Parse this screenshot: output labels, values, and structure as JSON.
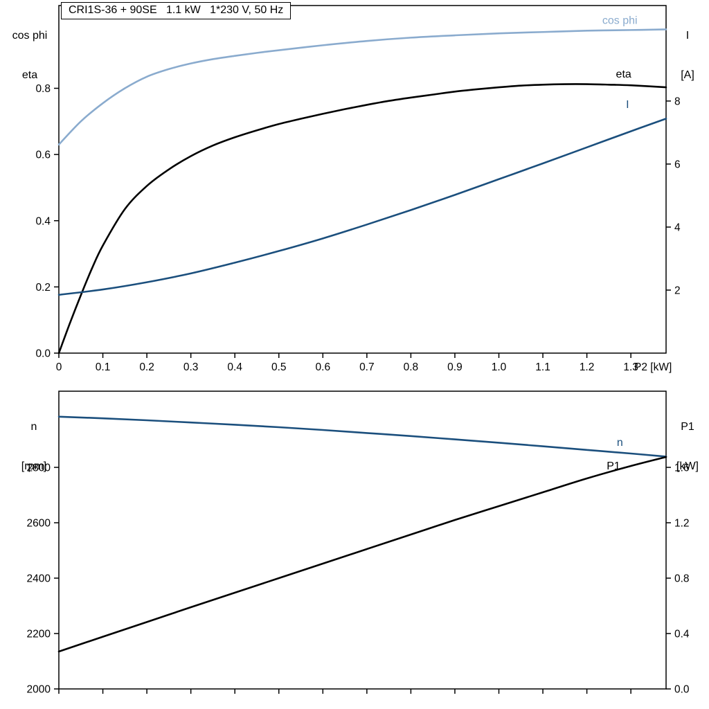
{
  "header": {
    "title": "CRI1S-36 + 90SE   1.1 kW   1*230 V, 50 Hz"
  },
  "axes_corner_labels": {
    "top_left": [
      "cos phi",
      "eta"
    ],
    "top_right": [
      "I",
      "[A]"
    ],
    "bottom_left": [
      "n",
      "[rpm]"
    ],
    "bottom_right": [
      "P1",
      "[kW]"
    ]
  },
  "colors": {
    "light_blue": "#8aabce",
    "dark_blue": "#1b4f7d",
    "black": "#000000"
  },
  "chart_data": [
    {
      "type": "line",
      "title": "CRI1S-36 + 90SE   1.1 kW   1*230 V, 50 Hz",
      "grid": false,
      "x_axis": {
        "min": 0,
        "max": 1.38,
        "label": "P2 [kW]",
        "ticks": [
          {
            "v": 0,
            "t": "0"
          },
          {
            "v": 0.1,
            "t": "0.1"
          },
          {
            "v": 0.2,
            "t": "0.2"
          },
          {
            "v": 0.3,
            "t": "0.3"
          },
          {
            "v": 0.4,
            "t": "0.4"
          },
          {
            "v": 0.5,
            "t": "0.5"
          },
          {
            "v": 0.6,
            "t": "0.6"
          },
          {
            "v": 0.7,
            "t": "0.7"
          },
          {
            "v": 0.8,
            "t": "0.8"
          },
          {
            "v": 0.9,
            "t": "0.9"
          },
          {
            "v": 1.0,
            "t": "1.0"
          },
          {
            "v": 1.1,
            "t": "1.1"
          },
          {
            "v": 1.2,
            "t": "1.2"
          },
          {
            "v": 1.3,
            "t": "1.3"
          }
        ]
      },
      "left_axis": {
        "name": "cos phi / eta",
        "min": 0,
        "max": 1.05,
        "ticks": [
          {
            "v": 0,
            "t": "0.0"
          },
          {
            "v": 0.2,
            "t": "0.2"
          },
          {
            "v": 0.4,
            "t": "0.4"
          },
          {
            "v": 0.6,
            "t": "0.6"
          },
          {
            "v": 0.8,
            "t": "0.8"
          }
        ]
      },
      "right_axis": {
        "name": "I [A]",
        "min": 0,
        "max": 11.03,
        "ticks": [
          {
            "v": 2,
            "t": "2"
          },
          {
            "v": 4,
            "t": "4"
          },
          {
            "v": 6,
            "t": "6"
          },
          {
            "v": 8,
            "t": "8"
          }
        ]
      },
      "series": [
        {
          "name": "cos phi",
          "axis": "left",
          "color": "#8aabce",
          "width": 2.6,
          "x": [
            0,
            0.05,
            0.1,
            0.15,
            0.2,
            0.25,
            0.3,
            0.35,
            0.4,
            0.45,
            0.5,
            0.6,
            0.7,
            0.8,
            0.9,
            1.0,
            1.1,
            1.2,
            1.3,
            1.38
          ],
          "y": [
            0.63,
            0.7,
            0.755,
            0.8,
            0.835,
            0.858,
            0.875,
            0.888,
            0.898,
            0.907,
            0.915,
            0.93,
            0.943,
            0.953,
            0.96,
            0.966,
            0.97,
            0.974,
            0.976,
            0.978
          ],
          "label": {
            "text": "cos phi",
            "x": 1.235,
            "y": 0.995
          }
        },
        {
          "name": "eta",
          "axis": "left",
          "color": "#000000",
          "width": 2.6,
          "x": [
            0,
            0.025,
            0.05,
            0.075,
            0.1,
            0.15,
            0.2,
            0.25,
            0.3,
            0.35,
            0.4,
            0.45,
            0.5,
            0.55,
            0.6,
            0.65,
            0.7,
            0.75,
            0.8,
            0.85,
            0.9,
            0.95,
            1.0,
            1.05,
            1.1,
            1.15,
            1.2,
            1.25,
            1.3,
            1.38
          ],
          "y": [
            0,
            0.09,
            0.175,
            0.255,
            0.325,
            0.435,
            0.505,
            0.555,
            0.595,
            0.627,
            0.652,
            0.673,
            0.692,
            0.708,
            0.723,
            0.737,
            0.75,
            0.762,
            0.772,
            0.781,
            0.79,
            0.797,
            0.803,
            0.808,
            0.811,
            0.8125,
            0.8125,
            0.811,
            0.809,
            0.803
          ],
          "label": {
            "text": "eta",
            "x": 1.266,
            "y": 0.832
          }
        },
        {
          "name": "I",
          "axis": "right",
          "color": "#1b4f7d",
          "width": 2.6,
          "x": [
            0,
            0.1,
            0.2,
            0.3,
            0.4,
            0.5,
            0.6,
            0.7,
            0.8,
            0.9,
            1.0,
            1.1,
            1.2,
            1.3,
            1.38
          ],
          "y": [
            1.85,
            2.02,
            2.25,
            2.53,
            2.87,
            3.24,
            3.64,
            4.08,
            4.54,
            5.02,
            5.52,
            6.02,
            6.53,
            7.04,
            7.44
          ],
          "label": {
            "text": "I",
            "x": 1.289,
            "y": 7.78
          }
        }
      ]
    },
    {
      "type": "line",
      "title": "",
      "grid": false,
      "x_axis": {
        "min": 0,
        "max": 1.38,
        "label": "",
        "ticks": [
          {
            "v": 0,
            "t": ""
          },
          {
            "v": 0.1,
            "t": ""
          },
          {
            "v": 0.2,
            "t": ""
          },
          {
            "v": 0.3,
            "t": ""
          },
          {
            "v": 0.4,
            "t": ""
          },
          {
            "v": 0.5,
            "t": ""
          },
          {
            "v": 0.6,
            "t": ""
          },
          {
            "v": 0.7,
            "t": ""
          },
          {
            "v": 0.8,
            "t": ""
          },
          {
            "v": 0.9,
            "t": ""
          },
          {
            "v": 1.0,
            "t": ""
          },
          {
            "v": 1.1,
            "t": ""
          },
          {
            "v": 1.2,
            "t": ""
          },
          {
            "v": 1.3,
            "t": ""
          }
        ]
      },
      "left_axis": {
        "name": "n [rpm]",
        "min": 2000,
        "max": 3075,
        "ticks": [
          {
            "v": 2000,
            "t": "2000"
          },
          {
            "v": 2200,
            "t": "2200"
          },
          {
            "v": 2400,
            "t": "2400"
          },
          {
            "v": 2600,
            "t": "2600"
          },
          {
            "v": 2800,
            "t": "2800"
          }
        ]
      },
      "right_axis": {
        "name": "P1 [kW]",
        "min": 0,
        "max": 2.15,
        "ticks": [
          {
            "v": 0,
            "t": "0.0"
          },
          {
            "v": 0.4,
            "t": "0.4"
          },
          {
            "v": 0.8,
            "t": "0.8"
          },
          {
            "v": 1.2,
            "t": "1.2"
          },
          {
            "v": 1.6,
            "t": "1.6"
          }
        ]
      },
      "series": [
        {
          "name": "n",
          "axis": "left",
          "color": "#1b4f7d",
          "width": 2.6,
          "x": [
            0,
            0.1,
            0.2,
            0.3,
            0.4,
            0.5,
            0.6,
            0.7,
            0.8,
            0.9,
            1.0,
            1.1,
            1.2,
            1.3,
            1.38
          ],
          "y": [
            2983,
            2977,
            2970,
            2962,
            2954,
            2945,
            2935,
            2924,
            2913,
            2901,
            2889,
            2876,
            2863,
            2850,
            2839
          ],
          "label": {
            "text": "n",
            "x": 1.268,
            "y": 2878
          }
        },
        {
          "name": "P1",
          "axis": "right",
          "color": "#000000",
          "width": 2.6,
          "x": [
            0,
            0.1,
            0.2,
            0.3,
            0.4,
            0.5,
            0.6,
            0.7,
            0.8,
            0.9,
            1.0,
            1.1,
            1.2,
            1.3,
            1.38
          ],
          "y": [
            0.27,
            0.377,
            0.483,
            0.59,
            0.695,
            0.8,
            0.905,
            1.01,
            1.115,
            1.22,
            1.32,
            1.42,
            1.52,
            1.61,
            1.675
          ],
          "label": {
            "text": "P1",
            "x": 1.245,
            "y": 1.585
          }
        }
      ]
    }
  ]
}
